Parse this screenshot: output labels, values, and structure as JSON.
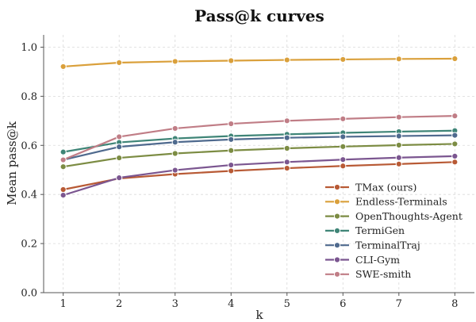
{
  "chart_data": {
    "type": "line",
    "title": "Pass@k curves",
    "xlabel": "k",
    "ylabel": "Mean pass@k",
    "x": [
      1,
      2,
      3,
      4,
      5,
      6,
      7,
      8
    ],
    "xlim": [
      0.65,
      8.35
    ],
    "ylim": [
      0.0,
      1.05
    ],
    "yticks": [
      "0.0",
      "0.2",
      "0.4",
      "0.6",
      "0.8",
      "1.0"
    ],
    "grid": true,
    "legend_position": "lower-right",
    "series": [
      {
        "name": "TMax (ours)",
        "color": "#b85a35",
        "values": [
          0.42,
          0.465,
          0.483,
          0.496,
          0.507,
          0.516,
          0.524,
          0.532
        ]
      },
      {
        "name": "Endless-Terminals",
        "color": "#daa03b",
        "values": [
          0.921,
          0.937,
          0.942,
          0.945,
          0.948,
          0.95,
          0.952,
          0.953
        ]
      },
      {
        "name": "OpenThoughts-Agent",
        "color": "#7c8c43",
        "values": [
          0.513,
          0.549,
          0.567,
          0.579,
          0.588,
          0.595,
          0.601,
          0.606
        ]
      },
      {
        "name": "TermiGen",
        "color": "#3f8577",
        "values": [
          0.573,
          0.612,
          0.628,
          0.638,
          0.645,
          0.651,
          0.656,
          0.66
        ]
      },
      {
        "name": "TerminalTraj",
        "color": "#4f6a8e",
        "values": [
          0.541,
          0.594,
          0.613,
          0.624,
          0.631,
          0.635,
          0.638,
          0.641
        ]
      },
      {
        "name": "CLI-Gym",
        "color": "#7b5690",
        "values": [
          0.397,
          0.468,
          0.499,
          0.52,
          0.532,
          0.542,
          0.55,
          0.556
        ]
      },
      {
        "name": "SWE-smith",
        "color": "#c07d86",
        "values": [
          0.541,
          0.635,
          0.669,
          0.688,
          0.7,
          0.708,
          0.715,
          0.72
        ]
      }
    ]
  }
}
